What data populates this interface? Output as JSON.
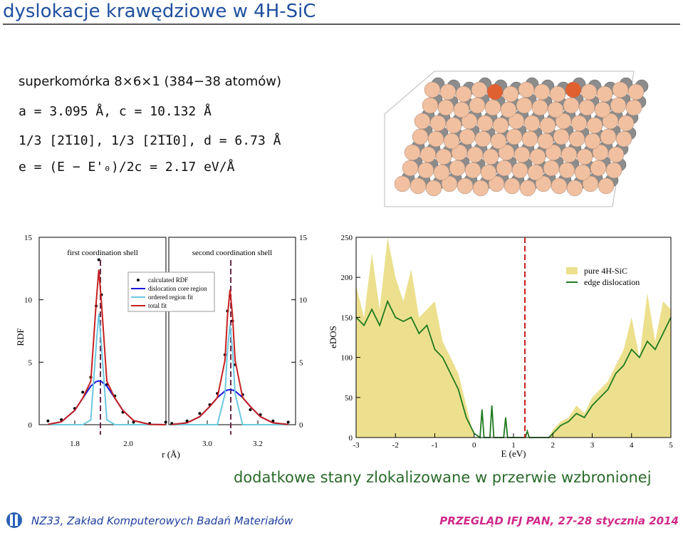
{
  "header": {
    "title": "dyslokacje krawędziowe w 4H-SiC"
  },
  "info": {
    "lines": [
      "superkomórka 8×6×1 (384−38 atomów)",
      "a = 3.095 Å,  c = 10.132 Å",
      "1/3 [2̅110],  1/3 [2̅1̅10],  d = 6.73 Å",
      "e = (E − E'₀)/2c = 2.17 eV/Å"
    ]
  },
  "caption": "dodatkowe stany zlokalizowane w przerwie wzbronionej",
  "footer": {
    "left": "NZ33, Zakład Komputerowych Badań Materiałów",
    "right": "PRZEGLĄD IFJ PAN,  27-28 stycznia 2014"
  },
  "chart_data": [
    {
      "type": "rdf-panels",
      "ylabel": "RDF",
      "xlabel": "r (Å)",
      "ylim": [
        0,
        15
      ],
      "yticks": [
        0,
        5,
        10,
        15
      ],
      "series": [
        {
          "name": "calculated RDF",
          "color": "#000000",
          "style": "dots"
        },
        {
          "name": "dislocation core region",
          "color": "#1a1ad8",
          "style": "line"
        },
        {
          "name": "ordered region fit",
          "color": "#6cc8e0",
          "style": "line"
        },
        {
          "name": "total fit",
          "color": "#c42020",
          "style": "line"
        }
      ],
      "marker_line_color": "#6a2a4a",
      "panels": [
        {
          "title": "first coordination shell",
          "xlim": [
            1.667,
            2.141
          ],
          "xticks": [
            1.8,
            {
              "value": 2.0,
              "label": "2.0"
            }
          ],
          "marker_line": 1.896,
          "x": [
            1.7,
            1.75,
            1.8,
            1.83,
            1.86,
            1.88,
            1.89,
            1.9,
            1.92,
            1.95,
            1.98,
            2.02,
            2.08,
            2.14
          ],
          "values": [
            [
              0.3,
              0.4,
              1.3,
              2.6,
              3.8,
              9.5,
              13.2,
              10.4,
              3.2,
              2.3,
              1.0,
              0.2,
              0.1,
              0.2
            ],
            [
              0.02,
              0.23,
              1.14,
              2.12,
              3.09,
              3.45,
              3.5,
              3.45,
              3.09,
              2.12,
              1.14,
              0.33,
              0.02,
              0.0
            ],
            [
              0.0,
              0.0,
              0.0,
              0.0,
              0.39,
              6.29,
              8.9,
              6.29,
              0.39,
              0.0,
              0.0,
              0.0,
              0.0,
              0.0
            ],
            [
              0.02,
              0.23,
              1.14,
              2.12,
              3.48,
              9.74,
              12.4,
              9.74,
              3.48,
              2.12,
              1.14,
              0.33,
              0.02,
              0.0
            ]
          ]
        },
        {
          "title": "second coordination shell",
          "xlim": [
            2.848,
            3.349
          ],
          "xticks": [
            {
              "value": 3.0,
              "label": "3.0"
            },
            3.2
          ],
          "marker_line": 3.093,
          "x": [
            2.86,
            2.92,
            2.97,
            3.01,
            3.04,
            3.07,
            3.08,
            3.09,
            3.1,
            3.11,
            3.14,
            3.17,
            3.21,
            3.26,
            3.32
          ],
          "values": [
            [
              0.1,
              0.3,
              0.9,
              1.6,
              2.5,
              5.6,
              9.1,
              10.3,
              8.3,
              4.8,
              2.4,
              1.2,
              0.8,
              0.3,
              0.2
            ],
            [
              0.01,
              0.15,
              0.64,
              1.46,
              2.17,
              2.69,
              2.77,
              2.8,
              2.77,
              2.69,
              2.17,
              1.46,
              0.64,
              0.15,
              0.01
            ],
            [
              0.0,
              0.0,
              0.0,
              0.0,
              0.0,
              2.46,
              5.95,
              8.0,
              5.95,
              2.46,
              0.0,
              0.0,
              0.0,
              0.0,
              0.0
            ],
            [
              0.01,
              0.15,
              0.64,
              1.46,
              2.17,
              5.15,
              8.72,
              10.8,
              8.72,
              5.15,
              2.17,
              1.46,
              0.64,
              0.15,
              0.01
            ]
          ]
        }
      ]
    },
    {
      "type": "edos",
      "ylabel": "eDOS",
      "xlabel": "E (eV)",
      "xlim": [
        -3,
        5
      ],
      "xticks": [
        -3,
        -2,
        -1,
        0,
        1,
        2,
        3,
        4,
        5
      ],
      "ylim": [
        0,
        250
      ],
      "yticks": [
        0,
        50,
        100,
        150,
        200,
        250
      ],
      "marker_line": 1.29,
      "marker_line_color": "#c42020",
      "x": [
        -3,
        -2.8,
        -2.6,
        -2.4,
        -2.2,
        -2.0,
        -1.8,
        -1.6,
        -1.4,
        -1.2,
        -1.0,
        -0.8,
        -0.6,
        -0.4,
        -0.2,
        0,
        0.15,
        0.2,
        0.25,
        0.4,
        0.45,
        0.5,
        0.75,
        0.8,
        0.85,
        1.3,
        1.35,
        1.4,
        1.9,
        2.0,
        2.2,
        2.4,
        2.6,
        2.8,
        3.0,
        3.2,
        3.4,
        3.6,
        3.8,
        4.0,
        4.2,
        4.4,
        4.6,
        4.8,
        5.0
      ],
      "series": [
        {
          "name": "pure 4H-SiC",
          "color": "#ece08e",
          "style": "area",
          "values": [
            190,
            150,
            230,
            160,
            250,
            200,
            170,
            210,
            150,
            160,
            170,
            120,
            100,
            80,
            40,
            0,
            0,
            0,
            0,
            0,
            0,
            0,
            0,
            0,
            0,
            0,
            0,
            0,
            0,
            10,
            20,
            25,
            40,
            30,
            50,
            60,
            70,
            90,
            110,
            150,
            100,
            180,
            120,
            170,
            160
          ]
        },
        {
          "name": "edge dislocation",
          "color": "#1f7a1f",
          "style": "line",
          "values": [
            150,
            140,
            160,
            140,
            170,
            150,
            145,
            150,
            130,
            140,
            110,
            100,
            80,
            60,
            25,
            5,
            0,
            35,
            0,
            0,
            40,
            0,
            0,
            25,
            0,
            0,
            8,
            0,
            0,
            5,
            15,
            20,
            30,
            25,
            40,
            50,
            60,
            80,
            90,
            110,
            100,
            120,
            110,
            130,
            150
          ]
        }
      ]
    }
  ]
}
